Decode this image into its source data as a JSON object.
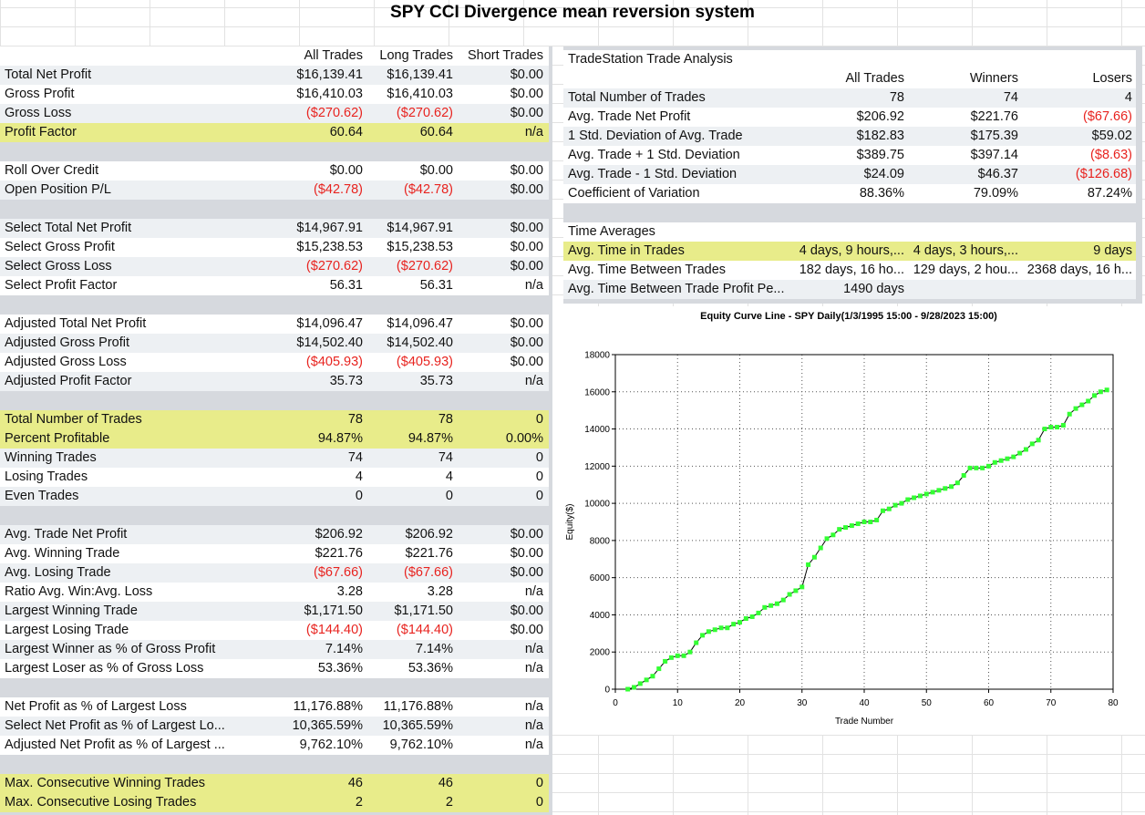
{
  "title": "SPY CCI Divergence mean reversion system",
  "left_table": {
    "headers": [
      "All Trades",
      "Long Trades",
      "Short Trades"
    ],
    "rows": [
      {
        "label": "Total Net Profit",
        "v": [
          "$16,139.41",
          "$16,139.41",
          "$0.00"
        ]
      },
      {
        "label": "Gross Profit",
        "v": [
          "$16,410.03",
          "$16,410.03",
          "$0.00"
        ]
      },
      {
        "label": "Gross Loss",
        "v": [
          "($270.62)",
          "($270.62)",
          "$0.00"
        ],
        "neg": [
          true,
          true,
          false
        ]
      },
      {
        "label": "Profit Factor",
        "v": [
          "60.64",
          "60.64",
          "n/a"
        ],
        "highlight": true
      },
      {
        "blank": true
      },
      {
        "label": "Roll Over Credit",
        "v": [
          "$0.00",
          "$0.00",
          "$0.00"
        ]
      },
      {
        "label": "Open Position P/L",
        "v": [
          "($42.78)",
          "($42.78)",
          "$0.00"
        ],
        "neg": [
          true,
          true,
          false
        ]
      },
      {
        "blank": true
      },
      {
        "label": "Select Total Net Profit",
        "v": [
          "$14,967.91",
          "$14,967.91",
          "$0.00"
        ]
      },
      {
        "label": "Select Gross Profit",
        "v": [
          "$15,238.53",
          "$15,238.53",
          "$0.00"
        ]
      },
      {
        "label": "Select Gross Loss",
        "v": [
          "($270.62)",
          "($270.62)",
          "$0.00"
        ],
        "neg": [
          true,
          true,
          false
        ]
      },
      {
        "label": "Select Profit Factor",
        "v": [
          "56.31",
          "56.31",
          "n/a"
        ]
      },
      {
        "blank": true
      },
      {
        "label": "Adjusted Total Net Profit",
        "v": [
          "$14,096.47",
          "$14,096.47",
          "$0.00"
        ]
      },
      {
        "label": "Adjusted Gross Profit",
        "v": [
          "$14,502.40",
          "$14,502.40",
          "$0.00"
        ]
      },
      {
        "label": "Adjusted Gross Loss",
        "v": [
          "($405.93)",
          "($405.93)",
          "$0.00"
        ],
        "neg": [
          true,
          true,
          false
        ]
      },
      {
        "label": "Adjusted Profit Factor",
        "v": [
          "35.73",
          "35.73",
          "n/a"
        ]
      },
      {
        "blank": true
      },
      {
        "label": "Total Number of Trades",
        "v": [
          "78",
          "78",
          "0"
        ],
        "highlight": true
      },
      {
        "label": "Percent Profitable",
        "v": [
          "94.87%",
          "94.87%",
          "0.00%"
        ],
        "highlight": true
      },
      {
        "label": "Winning Trades",
        "v": [
          "74",
          "74",
          "0"
        ]
      },
      {
        "label": "Losing Trades",
        "v": [
          "4",
          "4",
          "0"
        ]
      },
      {
        "label": "Even Trades",
        "v": [
          "0",
          "0",
          "0"
        ]
      },
      {
        "blank": true
      },
      {
        "label": "Avg. Trade Net Profit",
        "v": [
          "$206.92",
          "$206.92",
          "$0.00"
        ]
      },
      {
        "label": "Avg. Winning Trade",
        "v": [
          "$221.76",
          "$221.76",
          "$0.00"
        ]
      },
      {
        "label": "Avg. Losing Trade",
        "v": [
          "($67.66)",
          "($67.66)",
          "$0.00"
        ],
        "neg": [
          true,
          true,
          false
        ]
      },
      {
        "label": "Ratio Avg. Win:Avg. Loss",
        "v": [
          "3.28",
          "3.28",
          "n/a"
        ]
      },
      {
        "label": "Largest Winning Trade",
        "v": [
          "$1,171.50",
          "$1,171.50",
          "$0.00"
        ]
      },
      {
        "label": "Largest Losing Trade",
        "v": [
          "($144.40)",
          "($144.40)",
          "$0.00"
        ],
        "neg": [
          true,
          true,
          false
        ]
      },
      {
        "label": "Largest Winner as % of Gross Profit",
        "v": [
          "7.14%",
          "7.14%",
          "n/a"
        ]
      },
      {
        "label": "Largest Loser as % of Gross Loss",
        "v": [
          "53.36%",
          "53.36%",
          "n/a"
        ]
      },
      {
        "blank": true
      },
      {
        "label": "Net Profit as % of Largest Loss",
        "v": [
          "11,176.88%",
          "11,176.88%",
          "n/a"
        ]
      },
      {
        "label": "Select Net Profit as % of Largest Lo...",
        "v": [
          "10,365.59%",
          "10,365.59%",
          "n/a"
        ]
      },
      {
        "label": "Adjusted Net Profit as % of Largest ...",
        "v": [
          "9,762.10%",
          "9,762.10%",
          "n/a"
        ]
      },
      {
        "blank": true
      },
      {
        "label": "Max. Consecutive Winning Trades",
        "v": [
          "46",
          "46",
          "0"
        ],
        "highlight": true
      },
      {
        "label": "Max. Consecutive Losing Trades",
        "v": [
          "2",
          "2",
          "0"
        ],
        "highlight": true
      }
    ]
  },
  "right_table": {
    "title": "TradeStation Trade Analysis",
    "headers": [
      "All Trades",
      "Winners",
      "Losers"
    ],
    "rows": [
      {
        "label": "Total Number of Trades",
        "v": [
          "78",
          "74",
          "4"
        ]
      },
      {
        "label": "Avg. Trade Net Profit",
        "v": [
          "$206.92",
          "$221.76",
          "($67.66)"
        ],
        "neg": [
          false,
          false,
          true
        ]
      },
      {
        "label": "1 Std. Deviation of Avg. Trade",
        "v": [
          "$182.83",
          "$175.39",
          "$59.02"
        ]
      },
      {
        "label": "Avg. Trade + 1 Std. Deviation",
        "v": [
          "$389.75",
          "$397.14",
          "($8.63)"
        ],
        "neg": [
          false,
          false,
          true
        ]
      },
      {
        "label": "Avg. Trade - 1 Std. Deviation",
        "v": [
          "$24.09",
          "$46.37",
          "($126.68)"
        ],
        "neg": [
          false,
          false,
          true
        ]
      },
      {
        "label": "Coefficient of Variation",
        "v": [
          "88.36%",
          "79.09%",
          "87.24%"
        ]
      }
    ],
    "time_title": "Time Averages",
    "time_rows": [
      {
        "label": "Avg. Time in Trades",
        "v": [
          "4 days, 9 hours,...",
          "4 days, 3 hours,...",
          "9 days"
        ],
        "highlight": true
      },
      {
        "label": "Avg. Time Between Trades",
        "v": [
          "182 days, 16 ho...",
          "129 days, 2 hou...",
          "2368 days, 16 h..."
        ]
      },
      {
        "label": "Avg. Time Between Trade Profit Pe...",
        "v": [
          "1490 days",
          "",
          ""
        ]
      }
    ]
  },
  "chart_data": {
    "type": "line",
    "title": "Equity Curve Line - SPY Daily(1/3/1995 15:00 - 9/28/2023 15:00)",
    "xlabel": "Trade Number",
    "ylabel": "Equity($)",
    "xlim": [
      0,
      80
    ],
    "ylim": [
      0,
      18000
    ],
    "x_ticks": [
      0,
      10,
      20,
      30,
      40,
      50,
      60,
      70,
      80
    ],
    "y_ticks": [
      0,
      2000,
      4000,
      6000,
      8000,
      10000,
      12000,
      14000,
      16000,
      18000
    ],
    "grid": true,
    "line_color": "#000000",
    "marker_color": "#33ff33",
    "series": [
      {
        "x": [
          2,
          3,
          4,
          5,
          6,
          7,
          8,
          9,
          10,
          11,
          12,
          13,
          14,
          15,
          16,
          17,
          18,
          19,
          20,
          21,
          22,
          23,
          24,
          25,
          26,
          27,
          28,
          29,
          30,
          31,
          32,
          33,
          34,
          35,
          36,
          37,
          38,
          39,
          40,
          41,
          42,
          43,
          44,
          45,
          46,
          47,
          48,
          49,
          50,
          51,
          52,
          53,
          54,
          55,
          56,
          57,
          58,
          59,
          60,
          61,
          62,
          63,
          64,
          65,
          66,
          67,
          68,
          69,
          70,
          71,
          72,
          73,
          74,
          75,
          76,
          77,
          78,
          79
        ],
        "y": [
          0,
          100,
          300,
          500,
          700,
          1100,
          1500,
          1700,
          1800,
          1800,
          2000,
          2500,
          2900,
          3100,
          3200,
          3300,
          3300,
          3500,
          3600,
          3800,
          3900,
          4100,
          4400,
          4500,
          4600,
          4800,
          5100,
          5300,
          5500,
          6700,
          7100,
          7600,
          8100,
          8300,
          8600,
          8700,
          8800,
          8900,
          9000,
          9000,
          9100,
          9600,
          9700,
          9900,
          10000,
          10200,
          10300,
          10400,
          10500,
          10600,
          10700,
          10800,
          10900,
          11100,
          11500,
          11900,
          11900,
          11900,
          12000,
          12200,
          12300,
          12400,
          12500,
          12700,
          12900,
          13200,
          13400,
          14000,
          14100,
          14100,
          14200,
          14800,
          15100,
          15300,
          15500,
          15800,
          16000,
          16100
        ]
      }
    ]
  }
}
